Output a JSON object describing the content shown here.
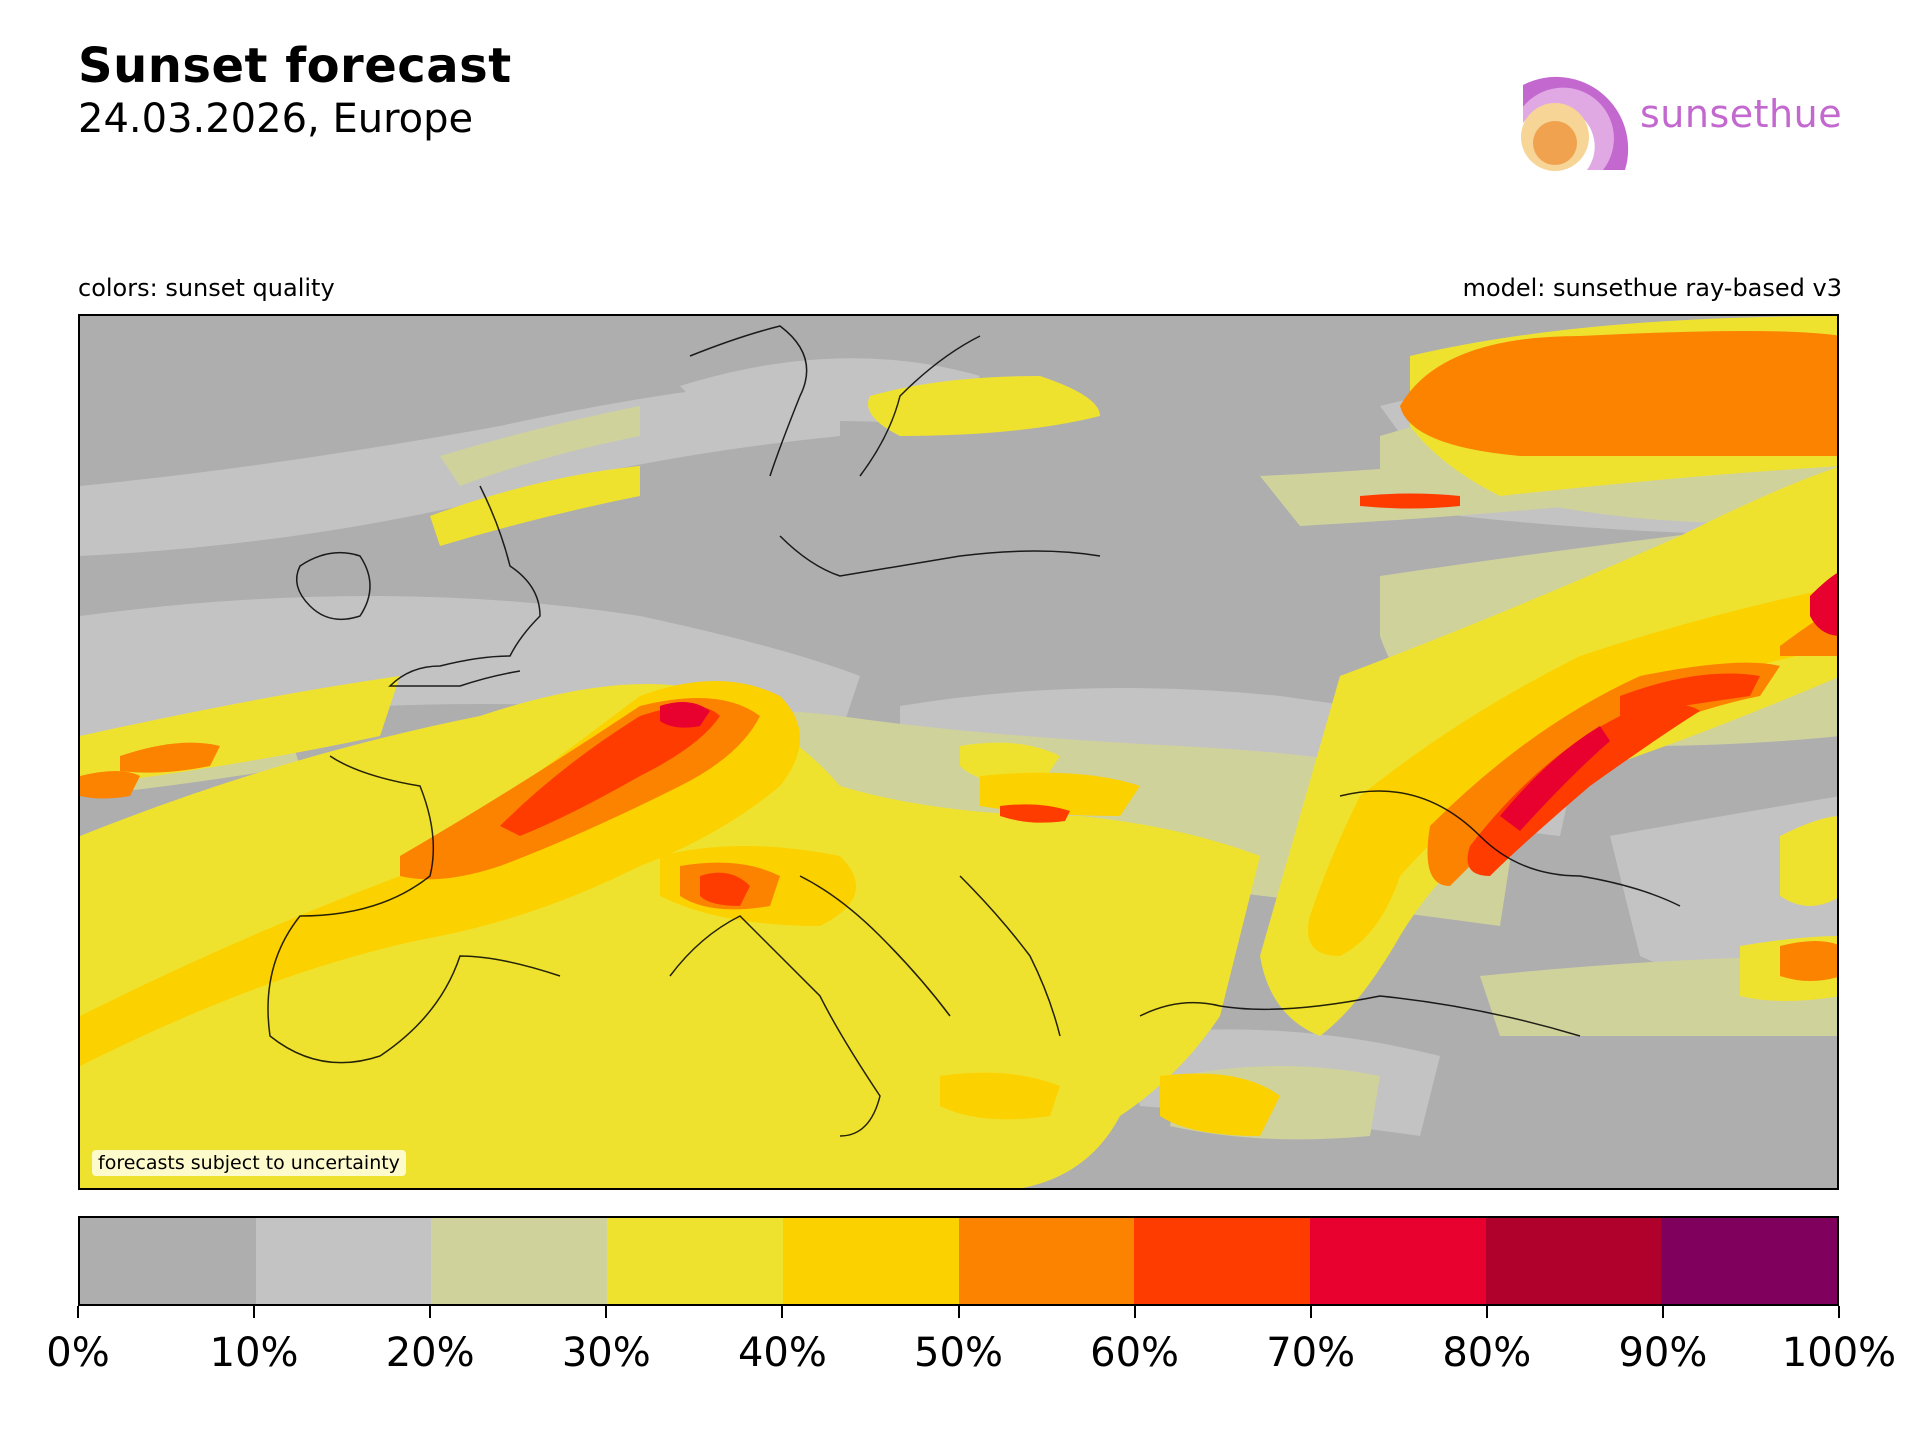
{
  "header": {
    "title": "Sunset forecast",
    "subtitle": "24.03.2026, Europe"
  },
  "logo": {
    "text": "sunsethue"
  },
  "notes": {
    "left": "colors: sunset quality",
    "right": "model: sunsethue ray-based v3",
    "uncertainty": "forecasts subject to uncertainty"
  },
  "colorbar": {
    "colors": [
      "#aeaeae",
      "#c3c3c3",
      "#d0d29c",
      "#efe22f",
      "#fcd100",
      "#fc8300",
      "#fe3c00",
      "#e8002f",
      "#b0002c",
      "#80005e"
    ],
    "labels": [
      "0%",
      "10%",
      "20%",
      "30%",
      "40%",
      "50%",
      "60%",
      "70%",
      "80%",
      "90%",
      "100%"
    ]
  }
}
